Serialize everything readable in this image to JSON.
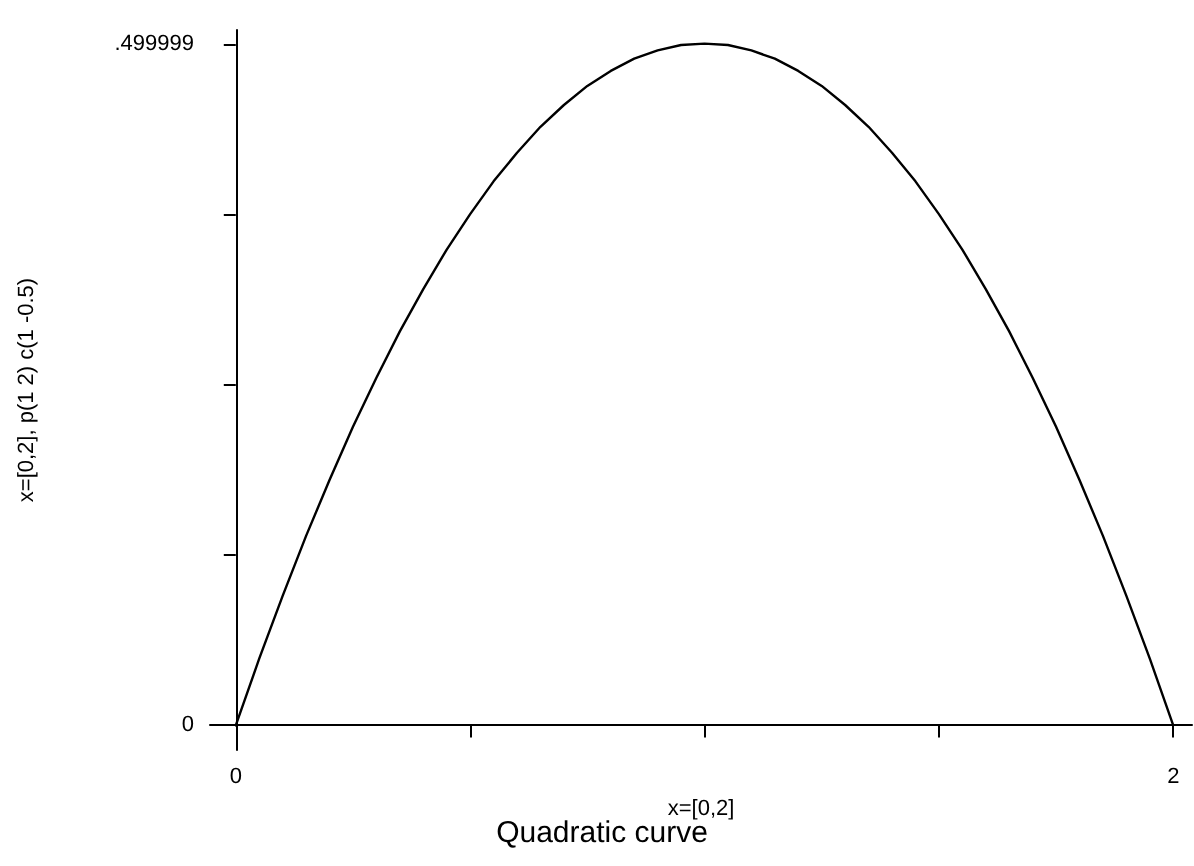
{
  "chart_data": {
    "type": "line",
    "title": "Quadratic curve",
    "xlabel": "x=[0,2]",
    "ylabel": "x=[0,2], p(1 2) c(1 -0.5)",
    "x": [
      0,
      0.05,
      0.1,
      0.15,
      0.2,
      0.25,
      0.3,
      0.35,
      0.4,
      0.45,
      0.5,
      0.55,
      0.6,
      0.65,
      0.7,
      0.75,
      0.8,
      0.85,
      0.9,
      0.95,
      1,
      1.05,
      1.1,
      1.15,
      1.2,
      1.25,
      1.3,
      1.35,
      1.4,
      1.45,
      1.5,
      1.55,
      1.6,
      1.65,
      1.7,
      1.75,
      1.8,
      1.85,
      1.9,
      1.95,
      2
    ],
    "series": [
      {
        "color": "#000000",
        "values": [
          0,
          0.049,
          0.095,
          0.139,
          0.18,
          0.219,
          0.255,
          0.289,
          0.32,
          0.349,
          0.375,
          0.399,
          0.42,
          0.439,
          0.455,
          0.469,
          0.48,
          0.489,
          0.495,
          0.499,
          0.5,
          0.499,
          0.495,
          0.489,
          0.48,
          0.469,
          0.455,
          0.439,
          0.42,
          0.399,
          0.375,
          0.349,
          0.32,
          0.289,
          0.255,
          0.219,
          0.18,
          0.139,
          0.095,
          0.049,
          0
        ]
      }
    ],
    "xlim": [
      -0.055,
      2.04
    ],
    "ylim": [
      -0.018,
      0.51
    ],
    "xticks": [
      0,
      {
        "value": 0.5,
        "label": null
      },
      {
        "value": 1,
        "label": null
      },
      {
        "value": 1.5,
        "label": null
      },
      2
    ],
    "yticks": [
      0,
      {
        "value": 0.125,
        "label": null
      },
      {
        "value": 0.25,
        "label": null
      },
      {
        "value": 0.375,
        "label": null
      },
      {
        "value": 0.499999,
        "label": ".499999"
      }
    ],
    "grid": false,
    "marker": "none",
    "line_style": "solid"
  }
}
